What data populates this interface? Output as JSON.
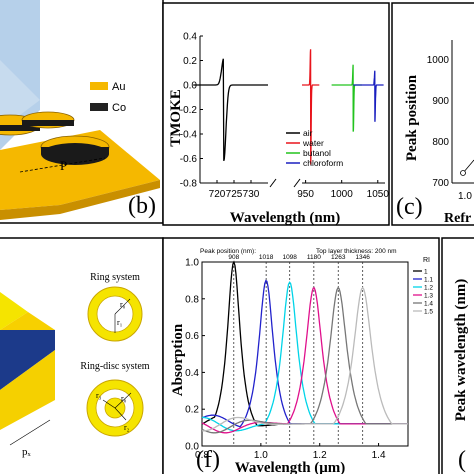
{
  "colors": {
    "gold": "#f5b800",
    "gold_dark": "#c98f00",
    "cobalt": "#1a1a1a",
    "plane": "#a9c8e6",
    "panel_frame": "#000000",
    "blue_layer": "#1c3a8a"
  },
  "panel_a": {
    "legend": [
      {
        "label": "Au",
        "color": "#f5b800"
      },
      {
        "label": "Co",
        "color": "#222222"
      }
    ],
    "period_label": "P"
  },
  "panel_b": {
    "panel_letter": "(b)",
    "ylabel": "TMOKE",
    "xlabel": "Wavelength (nm)",
    "legend": [
      "air",
      "water",
      "butanol",
      "chloroform"
    ]
  },
  "panel_c": {
    "panel_letter": "(c)",
    "ylabel": "Peak position",
    "xlabel_partial": "Refr",
    "yticks": [
      "1000",
      "900",
      "800",
      "700"
    ],
    "xtick_partial": "1.0"
  },
  "panel_e": {
    "ring_title": "Ring system",
    "ringdisc_title": "Ring-disc system",
    "r0": "r₀",
    "r1": "r₁",
    "r2": "r₂",
    "r3": "r₃",
    "period_label": "pₓ"
  },
  "panel_f": {
    "panel_letter": "(f)",
    "ylabel": "Absorption",
    "xlabel": "Wavelength (μm)",
    "top_note_left": "Peak position (nm):",
    "top_note_right": "Top layer thickness: 200 nm",
    "peak_labels": [
      "908",
      "1018",
      "1098",
      "1180",
      "1263",
      "1346"
    ],
    "legend_title": "RI",
    "legend": [
      "1",
      "1.1",
      "1.2",
      "1.3",
      "1.4",
      "1.5"
    ]
  },
  "panel_g": {
    "ylabel": "Peak wavelength (nm)",
    "panel_letter_partial": "("
  },
  "chart_data": [
    {
      "type": "line",
      "title": "",
      "xlabel": "Wavelength (nm)",
      "ylabel": "TMOKE",
      "xlim": [
        710,
        1060
      ],
      "ylim": [
        -0.8,
        0.4
      ],
      "xbreak": [
        735,
        950
      ],
      "xticks": [
        720,
        725,
        730,
        950,
        1000,
        1050
      ],
      "yticks": [
        -0.8,
        -0.6,
        -0.4,
        -0.2,
        0.0,
        0.2,
        0.4
      ],
      "series": [
        {
          "name": "air",
          "color": "#000000",
          "center": 722,
          "up": 0.22,
          "down": -0.62
        },
        {
          "name": "water",
          "color": "#e8141c",
          "center": 957,
          "up": 0.3,
          "down": -0.65
        },
        {
          "name": "butanol",
          "color": "#22c31e",
          "center": 1016,
          "up": 0.17,
          "down": -0.38
        },
        {
          "name": "chloroform",
          "color": "#1a1fbf",
          "center": 1046,
          "up": 0.12,
          "down": -0.3
        }
      ]
    },
    {
      "type": "line",
      "title": "",
      "xlabel": "Wavelength (μm)",
      "ylabel": "Absorption",
      "xlim": [
        0.8,
        1.5
      ],
      "ylim": [
        0.0,
        1.0
      ],
      "xticks": [
        0.8,
        1.0,
        1.2,
        1.4
      ],
      "yticks": [
        0.0,
        0.2,
        0.4,
        0.6,
        0.8,
        1.0
      ],
      "series": [
        {
          "name": "1",
          "color": "#000000",
          "peak": 0.908,
          "height": 1.0,
          "width": 0.028
        },
        {
          "name": "1.1",
          "color": "#2222cc",
          "peak": 1.018,
          "height": 0.9,
          "width": 0.032
        },
        {
          "name": "1.2",
          "color": "#00d4e8",
          "peak": 1.098,
          "height": 0.89,
          "width": 0.034
        },
        {
          "name": "1.3",
          "color": "#e0108c",
          "peak": 1.18,
          "height": 0.86,
          "width": 0.036
        },
        {
          "name": "1.4",
          "color": "#777777",
          "peak": 1.263,
          "height": 0.86,
          "width": 0.038
        },
        {
          "name": "1.5",
          "color": "#bbbbbb",
          "peak": 1.346,
          "height": 0.86,
          "width": 0.04
        }
      ]
    }
  ]
}
